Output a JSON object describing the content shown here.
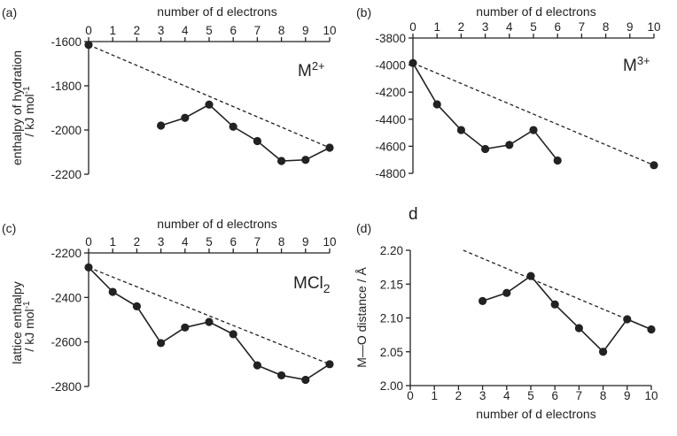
{
  "chart_data": [
    {
      "type": "line",
      "panel": "(a)",
      "species": "M",
      "species_sup": "2+",
      "xlabel": "number of d electrons",
      "xaxis_position": "top",
      "ylabel": [
        "enthalpy of hydration",
        "/ kJ mol",
        "-1"
      ],
      "xlim": [
        0,
        10
      ],
      "ylim": [
        -2200,
        -1600
      ],
      "xticks": [
        0,
        1,
        2,
        3,
        4,
        5,
        6,
        7,
        8,
        9,
        10
      ],
      "yticks": [
        -1600,
        -1800,
        -2000,
        -2200
      ],
      "series": [
        {
          "kind": "points",
          "x": [
            0
          ],
          "y": [
            -1615
          ]
        },
        {
          "kind": "data",
          "x": [
            3,
            4,
            5,
            6,
            7,
            8,
            9,
            10
          ],
          "y": [
            -1980,
            -1945,
            -1885,
            -1985,
            -2050,
            -2140,
            -2135,
            -2080
          ]
        },
        {
          "kind": "trend",
          "x": [
            0,
            10
          ],
          "y": [
            -1615,
            -2080
          ]
        }
      ]
    },
    {
      "type": "line",
      "panel": "(b)",
      "species": "M",
      "species_sup": "3+",
      "xlabel": "number of d electrons",
      "xaxis_position": "top",
      "ylabel": [],
      "xlim": [
        0,
        10
      ],
      "ylim": [
        -4800,
        -3800
      ],
      "xticks": [
        0,
        1,
        2,
        3,
        4,
        5,
        6,
        7,
        8,
        9,
        10
      ],
      "yticks": [
        -3800,
        -4000,
        -4200,
        -4400,
        -4600,
        -4800
      ],
      "series": [
        {
          "kind": "data",
          "x": [
            0,
            1,
            2,
            3,
            4,
            5,
            6
          ],
          "y": [
            -3985,
            -4290,
            -4480,
            -4620,
            -4590,
            -4480,
            -4705
          ]
        },
        {
          "kind": "points",
          "x": [
            10
          ],
          "y": [
            -4740
          ]
        },
        {
          "kind": "trend",
          "x": [
            0,
            10
          ],
          "y": [
            -3985,
            -4740
          ]
        }
      ]
    },
    {
      "type": "line",
      "panel": "(c)",
      "species": "MCl",
      "species_sub": "2",
      "xlabel": "number of d electrons",
      "xaxis_position": "top",
      "ylabel": [
        "lattice enthalpy",
        "/ kJ mol",
        "-1"
      ],
      "xlim": [
        0,
        10
      ],
      "ylim": [
        -2800,
        -2200
      ],
      "xticks": [
        0,
        1,
        2,
        3,
        4,
        5,
        6,
        7,
        8,
        9,
        10
      ],
      "yticks": [
        -2200,
        -2400,
        -2600,
        -2800
      ],
      "series": [
        {
          "kind": "data",
          "x": [
            0,
            1,
            2,
            3,
            4,
            5,
            6,
            7,
            8,
            9,
            10
          ],
          "y": [
            -2265,
            -2375,
            -2440,
            -2605,
            -2535,
            -2510,
            -2565,
            -2705,
            -2750,
            -2770,
            -2700
          ]
        },
        {
          "kind": "trend",
          "x": [
            0,
            10
          ],
          "y": [
            -2265,
            -2700
          ]
        }
      ]
    },
    {
      "type": "line",
      "panel": "(d)",
      "species": "d",
      "xlabel": "number of d electrons",
      "xaxis_position": "bottom",
      "ylabel": [
        "M—O distance / Å"
      ],
      "xlim": [
        0,
        10
      ],
      "ylim": [
        2.0,
        2.2
      ],
      "xticks": [
        0,
        1,
        2,
        3,
        4,
        5,
        6,
        7,
        8,
        9,
        10
      ],
      "yticks": [
        "2.00",
        "2.05",
        "2.10",
        "2.15",
        "2.20"
      ],
      "series": [
        {
          "kind": "data",
          "x": [
            3,
            4,
            5,
            6,
            7,
            8,
            9,
            10
          ],
          "y": [
            2.125,
            2.137,
            2.162,
            2.12,
            2.085,
            2.05,
            2.098,
            2.083
          ]
        },
        {
          "kind": "trend",
          "x": [
            2.2,
            10
          ],
          "y": [
            2.2,
            2.083
          ]
        }
      ]
    }
  ]
}
